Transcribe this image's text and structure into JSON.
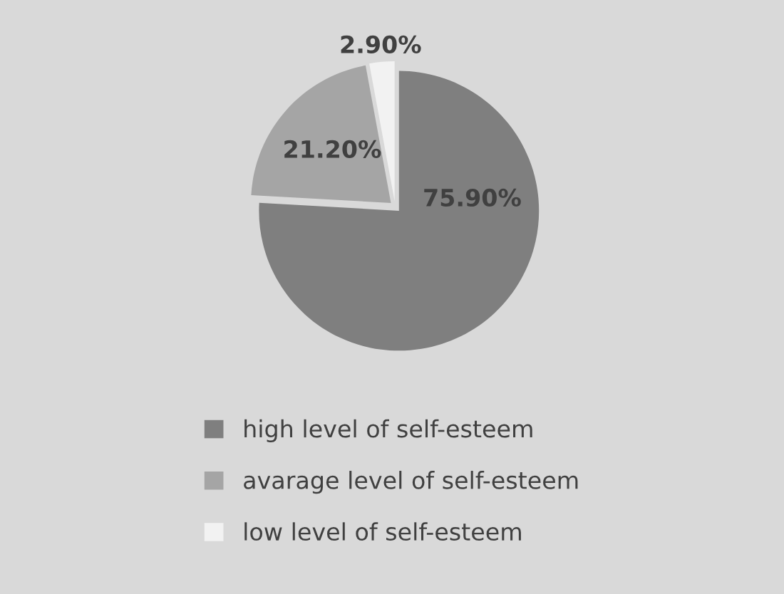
{
  "chart_data": {
    "type": "pie",
    "categories": [
      "high level of self-esteem",
      "avarage level of self-esteem",
      "low level of self-esteem"
    ],
    "values": [
      75.9,
      21.2,
      2.9
    ],
    "value_labels": [
      "75.90%",
      "21.20%",
      "2.90%"
    ],
    "colors": [
      "#7f7f7f",
      "#a5a5a5",
      "#f2f2f2"
    ],
    "legend": "bottom"
  }
}
